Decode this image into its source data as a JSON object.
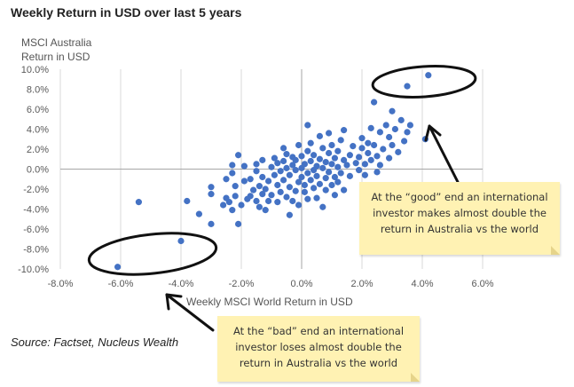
{
  "chart_data": {
    "type": "scatter",
    "title": "Weekly Return in USD over last 5 years",
    "ylabel_lines": [
      "MSCI Australia",
      "Return in USD"
    ],
    "xlabel": "Weekly MSCI World Return in USD",
    "xlim": [
      -8.0,
      6.0
    ],
    "ylim": [
      -10.0,
      10.0
    ],
    "x_ticks": [
      "-8.0%",
      "-6.0%",
      "-4.0%",
      "-2.0%",
      "0.0%",
      "2.0%",
      "4.0%",
      "6.0%"
    ],
    "y_ticks": [
      "-10.0%",
      "-8.0%",
      "-6.0%",
      "-4.0%",
      "-2.0%",
      "0.0%",
      "2.0%",
      "4.0%",
      "6.0%",
      "8.0%",
      "10.0%"
    ],
    "grid": "vertical",
    "point_color": "#4472c4",
    "points": [
      [
        -6.1,
        -9.8
      ],
      [
        -5.4,
        -3.3
      ],
      [
        -4.0,
        -7.2
      ],
      [
        -3.8,
        -3.2
      ],
      [
        -3.4,
        -4.5
      ],
      [
        -3.0,
        -5.5
      ],
      [
        -3.0,
        -2.5
      ],
      [
        -3.0,
        -1.8
      ],
      [
        -2.6,
        -3.6
      ],
      [
        -2.5,
        -2.9
      ],
      [
        -2.5,
        -1.0
      ],
      [
        -2.4,
        -3.3
      ],
      [
        -2.3,
        -4.1
      ],
      [
        -2.3,
        -0.4
      ],
      [
        -2.3,
        0.4
      ],
      [
        -2.2,
        -1.7
      ],
      [
        -2.2,
        -2.7
      ],
      [
        -2.1,
        -5.5
      ],
      [
        -2.1,
        1.4
      ],
      [
        -2.0,
        -3.6
      ],
      [
        -1.9,
        -1.2
      ],
      [
        -1.9,
        0.3
      ],
      [
        -1.8,
        -3.0
      ],
      [
        -1.7,
        -2.7
      ],
      [
        -1.7,
        -1.0
      ],
      [
        -1.6,
        -2.1
      ],
      [
        -1.5,
        -3.2
      ],
      [
        -1.5,
        -0.2
      ],
      [
        -1.5,
        0.5
      ],
      [
        -1.4,
        -1.7
      ],
      [
        -1.4,
        -3.8
      ],
      [
        -1.3,
        -2.5
      ],
      [
        -1.3,
        -0.8
      ],
      [
        -1.3,
        0.9
      ],
      [
        -1.2,
        -4.1
      ],
      [
        -1.2,
        -2.0
      ],
      [
        -1.1,
        -1.2
      ],
      [
        -1.1,
        -3.2
      ],
      [
        -1.0,
        0.2
      ],
      [
        -1.0,
        -2.6
      ],
      [
        -0.9,
        1.1
      ],
      [
        -0.9,
        -0.6
      ],
      [
        -0.8,
        -1.6
      ],
      [
        -0.8,
        -3.3
      ],
      [
        -0.8,
        0.6
      ],
      [
        -0.7,
        -0.2
      ],
      [
        -0.7,
        -2.3
      ],
      [
        -0.6,
        2.1
      ],
      [
        -0.6,
        -1.1
      ],
      [
        -0.6,
        0.8
      ],
      [
        -0.5,
        -2.8
      ],
      [
        -0.5,
        0.1
      ],
      [
        -0.5,
        1.5
      ],
      [
        -0.4,
        -4.6
      ],
      [
        -0.4,
        -1.8
      ],
      [
        -0.4,
        -0.6
      ],
      [
        -0.3,
        0.4
      ],
      [
        -0.3,
        -3.2
      ],
      [
        -0.3,
        1.2
      ],
      [
        -0.2,
        -2.2
      ],
      [
        -0.2,
        -0.1
      ],
      [
        -0.2,
        0.9
      ],
      [
        -0.1,
        -1.3
      ],
      [
        -0.1,
        2.4
      ],
      [
        -0.1,
        -3.6
      ],
      [
        0.0,
        0.1
      ],
      [
        0.0,
        -0.8
      ],
      [
        0.0,
        1.3
      ],
      [
        0.1,
        -2.3
      ],
      [
        0.1,
        0.5
      ],
      [
        0.1,
        -1.6
      ],
      [
        0.2,
        4.4
      ],
      [
        0.2,
        1.8
      ],
      [
        0.2,
        -0.4
      ],
      [
        0.2,
        -3.0
      ],
      [
        0.3,
        0.8
      ],
      [
        0.3,
        -1.1
      ],
      [
        0.3,
        2.6
      ],
      [
        0.4,
        -0.1
      ],
      [
        0.4,
        -1.9
      ],
      [
        0.4,
        1.4
      ],
      [
        0.5,
        0.3
      ],
      [
        0.5,
        -2.9
      ],
      [
        0.5,
        -0.7
      ],
      [
        0.6,
        1.0
      ],
      [
        0.6,
        3.3
      ],
      [
        0.6,
        -1.5
      ],
      [
        0.7,
        0.1
      ],
      [
        0.7,
        -3.8
      ],
      [
        0.7,
        2.1
      ],
      [
        0.8,
        -0.9
      ],
      [
        0.8,
        0.7
      ],
      [
        0.8,
        -2.1
      ],
      [
        0.9,
        1.6
      ],
      [
        0.9,
        -0.3
      ],
      [
        0.9,
        3.6
      ],
      [
        1.0,
        -1.6
      ],
      [
        1.0,
        0.5
      ],
      [
        1.0,
        2.4
      ],
      [
        1.1,
        -0.8
      ],
      [
        1.1,
        1.1
      ],
      [
        1.1,
        -2.6
      ],
      [
        1.2,
        0.2
      ],
      [
        1.2,
        1.8
      ],
      [
        1.2,
        -1.3
      ],
      [
        1.3,
        2.9
      ],
      [
        1.3,
        -0.4
      ],
      [
        1.4,
        0.9
      ],
      [
        1.4,
        -2.1
      ],
      [
        1.4,
        3.9
      ],
      [
        1.5,
        0.4
      ],
      [
        1.6,
        1.4
      ],
      [
        1.6,
        -0.7
      ],
      [
        1.7,
        2.3
      ],
      [
        1.8,
        0.6
      ],
      [
        1.9,
        -0.1
      ],
      [
        1.9,
        1.2
      ],
      [
        2.0,
        3.1
      ],
      [
        2.0,
        2.1
      ],
      [
        2.1,
        0.5
      ],
      [
        2.1,
        -0.6
      ],
      [
        2.2,
        1.6
      ],
      [
        2.2,
        2.6
      ],
      [
        2.3,
        4.1
      ],
      [
        2.3,
        0.9
      ],
      [
        2.4,
        6.7
      ],
      [
        2.4,
        2.4
      ],
      [
        2.5,
        1.3
      ],
      [
        2.5,
        -0.3
      ],
      [
        2.6,
        3.7
      ],
      [
        2.6,
        0.4
      ],
      [
        2.7,
        2.0
      ],
      [
        2.8,
        4.4
      ],
      [
        2.9,
        1.1
      ],
      [
        2.9,
        3.2
      ],
      [
        3.0,
        5.8
      ],
      [
        3.0,
        2.4
      ],
      [
        3.1,
        4.0
      ],
      [
        3.2,
        1.7
      ],
      [
        3.3,
        4.9
      ],
      [
        3.4,
        2.8
      ],
      [
        3.5,
        3.7
      ],
      [
        3.6,
        4.4
      ],
      [
        4.1,
        3.0
      ],
      [
        3.5,
        8.3
      ],
      [
        4.2,
        9.4
      ]
    ],
    "annotations": [
      {
        "text": "At the “good” end an international investor makes almost double the return in Australia vs the world"
      },
      {
        "text": "At the “bad” end an international investor loses almost double the return in Australia vs the world"
      }
    ]
  },
  "source": "Source: Factset, Nucleus Wealth"
}
